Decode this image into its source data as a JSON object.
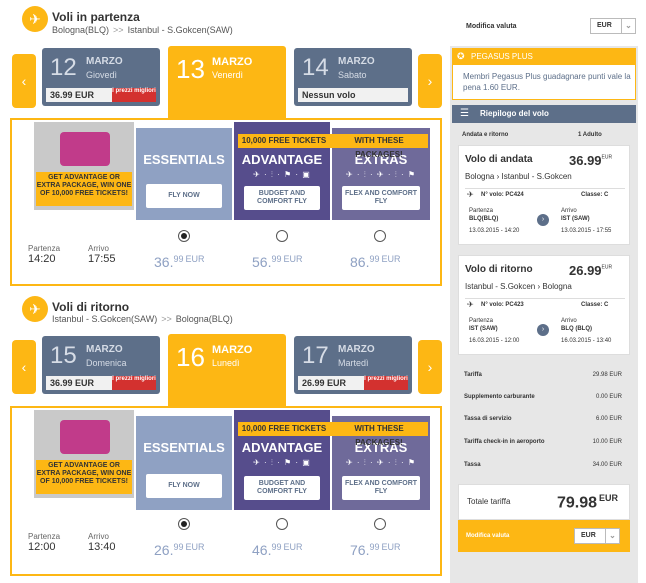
{
  "outbound": {
    "title": "Voli in partenza",
    "route_from": "Bologna(BLQ)",
    "route_to": "Istanbul - S.Gokcen(SAW)",
    "dates": [
      {
        "day": "12",
        "month": "MARZO",
        "dow": "Giovedì",
        "price": "36.99 EUR",
        "badge": "I prezzi migliori"
      },
      {
        "day": "13",
        "month": "MARZO",
        "dow": "Venerdì"
      },
      {
        "day": "14",
        "month": "MARZO",
        "dow": "Sabato",
        "price": "Nessun volo"
      }
    ],
    "times": {
      "dep_label": "Partenza",
      "dep": "14:20",
      "arr_label": "Arrivo",
      "arr": "17:55"
    },
    "prices": [
      {
        "int": "36.",
        "dec": "99",
        "cur": "EUR"
      },
      {
        "int": "56.",
        "dec": "99",
        "cur": "EUR"
      },
      {
        "int": "86.",
        "dec": "99",
        "cur": "EUR"
      }
    ],
    "selected": 0
  },
  "return": {
    "title": "Voli di ritorno",
    "route_from": "Istanbul - S.Gokcen(SAW)",
    "route_to": "Bologna(BLQ)",
    "dates": [
      {
        "day": "15",
        "month": "MARZO",
        "dow": "Domenica",
        "price": "36.99 EUR",
        "badge": "I prezzi migliori"
      },
      {
        "day": "16",
        "month": "MARZO",
        "dow": "Lunedì"
      },
      {
        "day": "17",
        "month": "MARZO",
        "dow": "Martedì",
        "price": "26.99 EUR",
        "badge": "I prezzi migliori"
      }
    ],
    "times": {
      "dep_label": "Partenza",
      "dep": "12:00",
      "arr_label": "Arrivo",
      "arr": "13:40"
    },
    "prices": [
      {
        "int": "26.",
        "dec": "99",
        "cur": "EUR"
      },
      {
        "int": "46.",
        "dec": "99",
        "cur": "EUR"
      },
      {
        "int": "76.",
        "dec": "99",
        "cur": "EUR"
      }
    ],
    "selected": 0
  },
  "packages": {
    "promo_text": "GET ADVANTAGE OR EXTRA PACKAGE, WIN ONE OF 10,000 FREE TICKETS!",
    "free_banner_a": "10,000 FREE TICKETS",
    "free_banner_b": "WITH THESE PACKAGES!",
    "essentials": {
      "title": "ESSENTIALS",
      "button": "FLY NOW"
    },
    "advantage": {
      "title": "ADVANTAGE",
      "button": "BUDGET AND COMFORT FLY",
      "icons": "✈ · ⫶ · ⚑ · ▣"
    },
    "extras": {
      "title": "EXTRAS",
      "button": "FLEX AND COMFORT FLY",
      "icons": "✈ · ⫶ · ✈ · ⫶ · ⚑"
    }
  },
  "currency_top": {
    "label": "Modifica valuta",
    "value": "EUR"
  },
  "pegasus_plus": {
    "title": "PEGASUS PLUS",
    "text": "Membri Pegasus Plus guadagnare punti vale la pena 1.60 EUR."
  },
  "summary": {
    "title": "Riepilogo del volo",
    "trip_type": "Andata e ritorno",
    "pax": "1 Adulto",
    "outbound": {
      "title": "Volo di andata",
      "price": "36.99",
      "cur": "EUR",
      "from": "Bologna",
      "to": "Istanbul - S.Gokcen",
      "flight_no": "N° volo: PC424",
      "class": "Classe: C",
      "dep_label": "Partenza",
      "dep_code": "BLQ(BLQ)",
      "dep_time": "13.03.2015 - 14:20",
      "arr_label": "Arrivo",
      "arr_code": "IST (SAW)",
      "arr_time": "13.03.2015 - 17:55"
    },
    "return": {
      "title": "Volo di ritorno",
      "price": "26.99",
      "cur": "EUR",
      "from": "Istanbul - S.Gokcen",
      "to": "Bologna",
      "flight_no": "N° volo: PC423",
      "class": "Classe: C",
      "dep_label": "Partenza",
      "dep_code": "IST (SAW)",
      "dep_time": "16.03.2015 - 12:00",
      "arr_label": "Arrivo",
      "arr_code": "BLQ (BLQ)",
      "arr_time": "16.03.2015 - 13:40"
    },
    "fees": [
      {
        "label": "Tariffa",
        "value": "29.98 EUR"
      },
      {
        "label": "Supplemento carburante",
        "value": "0.00 EUR"
      },
      {
        "label": "Tassa di servizio",
        "value": "6.00 EUR"
      },
      {
        "label": "Tariffa check-in in aeroporto",
        "value": "10.00 EUR"
      },
      {
        "label": "Tassa",
        "value": "34.00 EUR"
      }
    ],
    "total_label": "Totale tariffa",
    "total_value": "79.98",
    "total_cur": "EUR",
    "currency_label": "Modifica valuta",
    "currency_value": "EUR"
  }
}
